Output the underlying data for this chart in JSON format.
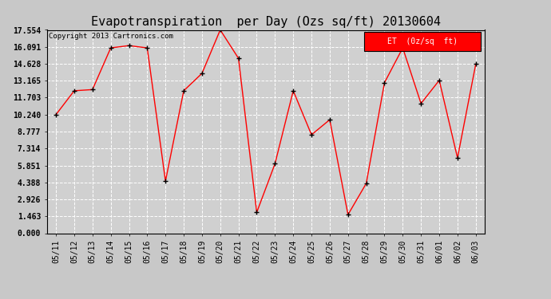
{
  "title": "Evapotranspiration  per Day (Ozs sq/ft) 20130604",
  "copyright": "Copyright 2013 Cartronics.com",
  "legend_label": "ET  (0z/sq  ft)",
  "dates": [
    "05/11",
    "05/12",
    "05/13",
    "05/14",
    "05/15",
    "05/16",
    "05/17",
    "05/18",
    "05/19",
    "05/20",
    "05/21",
    "05/22",
    "05/23",
    "05/24",
    "05/25",
    "05/26",
    "05/27",
    "05/28",
    "05/29",
    "05/30",
    "05/31",
    "06/01",
    "06/02",
    "06/03"
  ],
  "values": [
    10.24,
    12.3,
    12.4,
    16.0,
    16.2,
    16.0,
    4.5,
    12.3,
    13.8,
    17.554,
    15.1,
    1.8,
    6.0,
    12.3,
    8.5,
    9.8,
    1.6,
    4.3,
    13.0,
    16.0,
    11.2,
    13.2,
    6.5,
    14.6
  ],
  "yticks": [
    0.0,
    1.463,
    2.926,
    4.388,
    5.851,
    7.314,
    8.777,
    10.24,
    11.703,
    13.165,
    14.628,
    16.091,
    17.554
  ],
  "ylim": [
    0,
    17.554
  ],
  "line_color": "red",
  "marker_color": "black",
  "bg_color": "#c8c8c8",
  "plot_bg_color": "#d0d0d0",
  "grid_color": "white",
  "title_fontsize": 11,
  "tick_fontsize": 7,
  "copyright_fontsize": 6.5,
  "legend_bg": "red",
  "legend_text_color": "white",
  "legend_fontsize": 7
}
